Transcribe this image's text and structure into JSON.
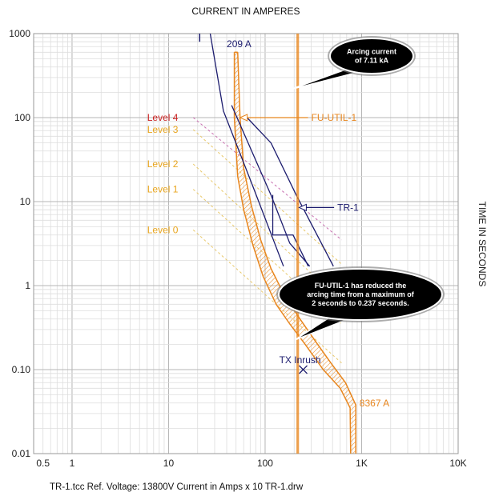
{
  "chart_data": {
    "type": "line",
    "title": "CURRENT IN AMPERES",
    "ylabel": "TIME IN SECONDS",
    "x_scale": "log",
    "y_scale": "log",
    "xlim": [
      0.4,
      10000
    ],
    "ylim": [
      0.01,
      1000
    ],
    "x_ticks": [
      {
        "value": 0.5,
        "label": "0.5"
      },
      {
        "value": 1,
        "label": "1"
      },
      {
        "value": 10,
        "label": "10"
      },
      {
        "value": 100,
        "label": "100"
      },
      {
        "value": 1000,
        "label": "1K"
      },
      {
        "value": 10000,
        "label": "10K"
      }
    ],
    "y_ticks": [
      {
        "value": 1000,
        "label": "1000"
      },
      {
        "value": 100,
        "label": "100"
      },
      {
        "value": 10,
        "label": "10"
      },
      {
        "value": 1,
        "label": "1"
      },
      {
        "value": 0.1,
        "label": "0.10"
      },
      {
        "value": 0.01,
        "label": "0.01"
      }
    ],
    "grid": true,
    "colors": {
      "fuse": "#e8861e",
      "transformer": "#1c1c6e",
      "level4": "#cc2222",
      "level": "#e8a51e"
    },
    "fuse_min_melt": [
      [
        48,
        600
      ],
      [
        48,
        100
      ],
      [
        52,
        20
      ],
      [
        60,
        8
      ],
      [
        75,
        3
      ],
      [
        95,
        1.3
      ],
      [
        130,
        0.6
      ],
      [
        180,
        0.35
      ],
      [
        260,
        0.2
      ],
      [
        400,
        0.1
      ],
      [
        600,
        0.06
      ],
      [
        760,
        0.035
      ],
      [
        770,
        0.01
      ]
    ],
    "fuse_total_clear": [
      [
        52,
        600
      ],
      [
        55,
        100
      ],
      [
        60,
        25
      ],
      [
        72,
        9
      ],
      [
        90,
        3.5
      ],
      [
        115,
        1.6
      ],
      [
        160,
        0.75
      ],
      [
        230,
        0.4
      ],
      [
        330,
        0.22
      ],
      [
        480,
        0.12
      ],
      [
        680,
        0.07
      ],
      [
        870,
        0.038
      ],
      [
        870,
        0.01
      ]
    ],
    "tr1_curves": [
      [
        [
          27,
          1000
        ],
        [
          37,
          120
        ],
        [
          75,
          15
        ],
        [
          155,
          1.7
        ]
      ],
      [
        [
          45,
          140
        ],
        [
          115,
          12
        ],
        [
          180,
          3.2
        ],
        [
          290,
          1.7
        ]
      ],
      [
        [
          65,
          100
        ],
        [
          115,
          50
        ],
        [
          210,
          12
        ],
        [
          510,
          1.7
        ]
      ],
      [
        [
          120,
          12
        ],
        [
          120,
          4
        ],
        [
          195,
          4
        ],
        [
          280,
          1.7
        ]
      ]
    ],
    "tr1_damage_marker": {
      "x": 21,
      "y_from": 800,
      "y_to": 1000
    },
    "arc_flash_levels": [
      {
        "name": "Level 4",
        "label_at": [
          6,
          100
        ],
        "from": [
          18,
          100
        ],
        "to": [
          620,
          3.5
        ]
      },
      {
        "name": "Level 3",
        "label_at": [
          6,
          72
        ],
        "from": [
          18,
          72
        ],
        "to": [
          620,
          1.8
        ]
      },
      {
        "name": "Level 2",
        "label_at": [
          6,
          28
        ],
        "from": [
          18,
          28
        ],
        "to": [
          620,
          0.65
        ]
      },
      {
        "name": "Level 1",
        "label_at": [
          6,
          14
        ],
        "from": [
          18,
          14
        ],
        "to": [
          620,
          0.35
        ]
      },
      {
        "name": "Level 0",
        "label_at": [
          6,
          4.6
        ],
        "from": [
          18,
          4.6
        ],
        "to": [
          620,
          0.12
        ]
      }
    ],
    "arcing_current_line": {
      "x": 215,
      "x2": 222
    },
    "annotations": {
      "a209": {
        "text": "209 A",
        "at": [
          40,
          750
        ]
      },
      "fu_util": {
        "text": "FU-UTIL-1",
        "tip": [
          55,
          100
        ],
        "label_at": [
          230,
          100
        ]
      },
      "tr1": {
        "text": "TR-1",
        "tip": [
          225,
          8.5
        ],
        "label_at": [
          560,
          8.5
        ]
      },
      "tx_inrush": {
        "text": "TX Inrush",
        "label_at": [
          140,
          0.13
        ],
        "marker": [
          248,
          0.1
        ]
      },
      "a8367": {
        "text": "8367 A",
        "at": [
          950,
          0.04
        ]
      }
    },
    "callouts": [
      {
        "lines": [
          "Arcing current",
          "of 7.11 kA"
        ]
      },
      {
        "lines": [
          "FU-UTIL-1 has reduced the",
          "arcing time from a maximum of",
          "2 seconds to 0.237 seconds."
        ]
      }
    ],
    "footer": "TR-1.tcc   Ref. Voltage: 13800V   Current in Amps x 10   TR-1.drw"
  }
}
